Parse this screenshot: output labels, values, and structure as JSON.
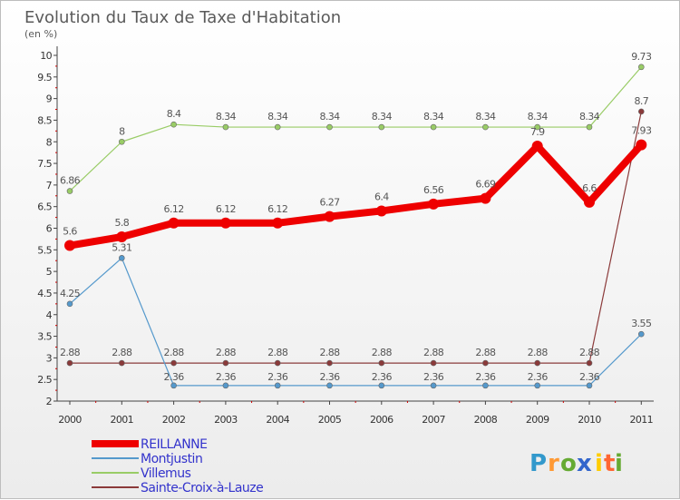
{
  "chart_data": {
    "type": "line",
    "title": "Evolution du Taux de Taxe d'Habitation",
    "subtitle": "(en %)",
    "x": [
      "2000",
      "2001",
      "2002",
      "2003",
      "2004",
      "2005",
      "2006",
      "2007",
      "2008",
      "2009",
      "2010",
      "2011"
    ],
    "ylim": [
      2,
      10
    ],
    "yticks": [
      "2",
      "2.5",
      "3",
      "3.5",
      "4",
      "4.5",
      "5",
      "5.5",
      "6",
      "6.5",
      "7",
      "7.5",
      "8",
      "8.5",
      "9",
      "9.5",
      "10"
    ],
    "grid": false,
    "series": [
      {
        "name": "Villemus",
        "color": "#99cc66",
        "values": [
          6.86,
          8,
          8.4,
          8.34,
          8.34,
          8.34,
          8.34,
          8.34,
          8.34,
          8.34,
          8.34,
          9.73
        ],
        "labels": [
          "6.86",
          "8",
          "8.4",
          "8.34",
          "8.34",
          "8.34",
          "8.34",
          "8.34",
          "8.34",
          "8.34",
          "8.34",
          "9.73"
        ]
      },
      {
        "name": "Sainte-Croix-à-Lauze",
        "color": "#8b3a3a",
        "values": [
          2.88,
          2.88,
          2.88,
          2.88,
          2.88,
          2.88,
          2.88,
          2.88,
          2.88,
          2.88,
          2.88,
          8.7
        ],
        "labels": [
          "2.88",
          "2.88",
          "2.88",
          "2.88",
          "2.88",
          "2.88",
          "2.88",
          "2.88",
          "2.88",
          "2.88",
          "2.88",
          "8.7"
        ]
      },
      {
        "name": "Montjustin",
        "color": "#5599cc",
        "values": [
          4.25,
          5.31,
          2.36,
          2.36,
          2.36,
          2.36,
          2.36,
          2.36,
          2.36,
          2.36,
          2.36,
          3.55
        ],
        "labels": [
          "4.25",
          "5.31",
          "2.36",
          "2.36",
          "2.36",
          "2.36",
          "2.36",
          "2.36",
          "2.36",
          "2.36",
          "2.36",
          "3.55"
        ]
      },
      {
        "name": "REILLANNE",
        "color": "#ee0000",
        "values": [
          5.6,
          5.8,
          6.12,
          6.12,
          6.12,
          6.27,
          6.4,
          6.56,
          6.69,
          7.9,
          6.6,
          7.93
        ],
        "labels": [
          "5.6",
          "5.8",
          "6.12",
          "6.12",
          "6.12",
          "6.27",
          "6.4",
          "6.56",
          "6.69",
          "7.9",
          "6.6",
          "7.93"
        ]
      }
    ],
    "legend": [
      {
        "name": "REILLANNE",
        "color": "#ee0000",
        "text_color": "#3333cc"
      },
      {
        "name": "Montjustin",
        "color": "#5599cc",
        "text_color": "#3333cc"
      },
      {
        "name": "Villemus",
        "color": "#99cc66",
        "text_color": "#3333cc"
      },
      {
        "name": "Sainte-Croix-à-Lauze",
        "color": "#8b3a3a",
        "text_color": "#3333cc"
      }
    ]
  },
  "brand": {
    "letters": [
      "P",
      "r",
      "o",
      "x",
      "i",
      "t",
      "i"
    ],
    "colors": [
      "#3399cc",
      "#ff9933",
      "#66aa33",
      "#3366cc",
      "#ffcc00",
      "#ff6633",
      "#66aa33"
    ]
  }
}
